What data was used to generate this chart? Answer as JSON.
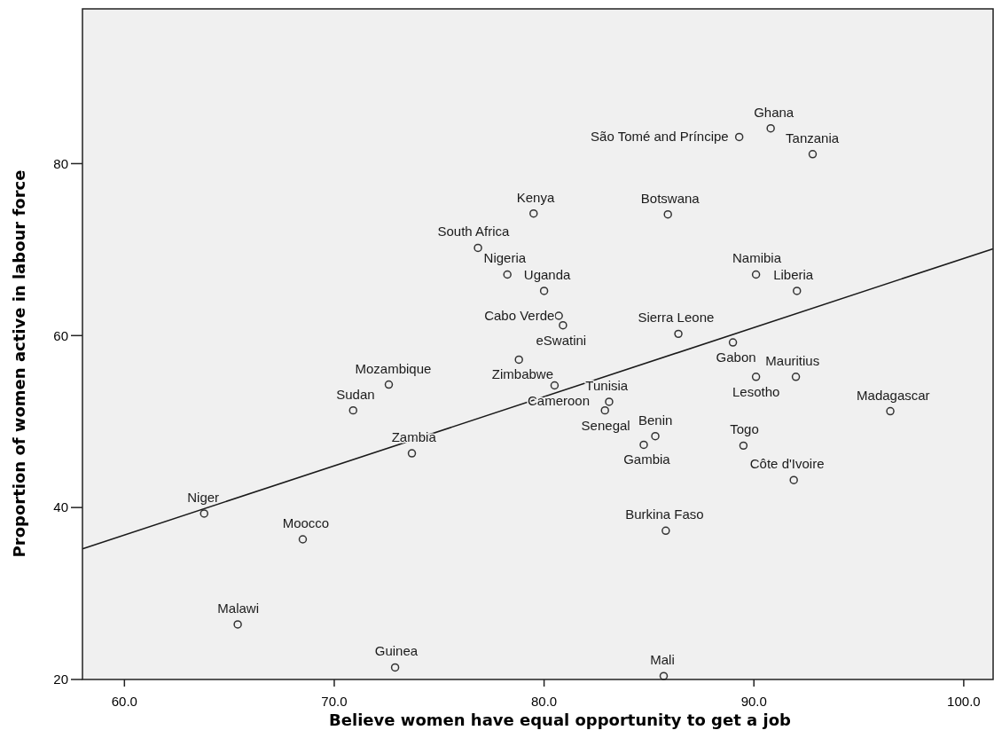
{
  "chart_data": {
    "type": "scatter",
    "xlabel": "Believe women have equal opportunity to get a job",
    "ylabel": "Proportion of women active in labour force",
    "xlim": [
      58,
      101.4
    ],
    "ylim": [
      20,
      98
    ],
    "xticks": [
      {
        "value": 60,
        "label": "60.0"
      },
      {
        "value": 70,
        "label": "70.0"
      },
      {
        "value": 80,
        "label": "80.0"
      },
      {
        "value": 90,
        "label": "90.0"
      },
      {
        "value": 100,
        "label": "100.0"
      }
    ],
    "yticks": [
      20,
      40,
      60,
      80
    ],
    "grid": false,
    "series": [
      {
        "marker": "circle",
        "color": "#333333",
        "x": [
          90.8,
          89.3,
          92.8,
          79.5,
          85.9,
          76.85,
          78.25,
          80.0,
          90.1,
          92.05,
          80.7,
          80.9,
          86.4,
          89.0,
          78.8,
          72.6,
          80.5,
          90.1,
          92.0,
          96.5,
          83.1,
          82.9,
          70.9,
          73.7,
          85.3,
          84.75,
          89.5,
          91.9,
          63.8,
          68.5,
          85.8,
          65.4,
          72.9,
          85.7
        ],
        "values": [
          84.1,
          83.1,
          81.1,
          74.2,
          74.1,
          70.2,
          67.1,
          65.2,
          67.1,
          65.2,
          62.3,
          61.2,
          60.2,
          59.2,
          57.2,
          54.3,
          54.2,
          55.2,
          55.2,
          51.2,
          52.3,
          51.3,
          51.3,
          46.3,
          48.3,
          47.3,
          47.2,
          43.2,
          39.3,
          36.3,
          37.3,
          26.4,
          21.4,
          20.4
        ]
      },
      {
        "type": "line",
        "color": "#1a1a1a",
        "x": [
          58,
          101.4
        ],
        "values": [
          35.2,
          70.1
        ],
        "line_style": "solid"
      }
    ],
    "annotations": [
      {
        "text": "Ghana",
        "x": 90.8,
        "y": 84.1
      },
      {
        "text": "São Tomé and Príncipe",
        "x": 89.3,
        "y": 83.1
      },
      {
        "text": "Tanzania",
        "x": 92.8,
        "y": 81.1
      },
      {
        "text": "Kenya",
        "x": 79.5,
        "y": 74.2
      },
      {
        "text": "Botswana",
        "x": 85.9,
        "y": 74.1
      },
      {
        "text": "South Africa",
        "x": 76.85,
        "y": 70.2
      },
      {
        "text": "Nigeria",
        "x": 78.25,
        "y": 67.1
      },
      {
        "text": "Uganda",
        "x": 80.0,
        "y": 65.2
      },
      {
        "text": "Namibia",
        "x": 90.1,
        "y": 67.1
      },
      {
        "text": "Liberia",
        "x": 92.05,
        "y": 65.2
      },
      {
        "text": "Cabo Verde",
        "x": 80.7,
        "y": 62.3
      },
      {
        "text": "eSwatini",
        "x": 80.9,
        "y": 61.2
      },
      {
        "text": "Sierra Leone",
        "x": 86.4,
        "y": 60.2
      },
      {
        "text": "Gabon",
        "x": 89.0,
        "y": 59.2
      },
      {
        "text": "Zimbabwe",
        "x": 78.8,
        "y": 57.2
      },
      {
        "text": "Mozambique",
        "x": 72.6,
        "y": 54.3
      },
      {
        "text": "Cameroon",
        "x": 80.5,
        "y": 54.2
      },
      {
        "text": "Lesotho",
        "x": 90.1,
        "y": 55.2
      },
      {
        "text": "Mauritius",
        "x": 92.0,
        "y": 55.2
      },
      {
        "text": "Madagascar",
        "x": 96.5,
        "y": 51.2
      },
      {
        "text": "Tunisia",
        "x": 83.1,
        "y": 52.3
      },
      {
        "text": "Senegal",
        "x": 82.9,
        "y": 51.3
      },
      {
        "text": "Sudan",
        "x": 70.9,
        "y": 51.3
      },
      {
        "text": "Zambia",
        "x": 73.7,
        "y": 46.3
      },
      {
        "text": "Benin",
        "x": 85.3,
        "y": 48.3
      },
      {
        "text": "Gambia",
        "x": 84.75,
        "y": 47.3
      },
      {
        "text": "Togo",
        "x": 89.5,
        "y": 47.2
      },
      {
        "text": "Côte d'Ivoire",
        "x": 91.9,
        "y": 43.2
      },
      {
        "text": "Niger",
        "x": 63.8,
        "y": 39.3
      },
      {
        "text": "Moocco",
        "x": 68.5,
        "y": 36.3
      },
      {
        "text": "Burkina Faso",
        "x": 85.8,
        "y": 37.3
      },
      {
        "text": "Malawi",
        "x": 65.4,
        "y": 26.4
      },
      {
        "text": "Guinea",
        "x": 72.9,
        "y": 21.4
      },
      {
        "text": "Mali",
        "x": 85.7,
        "y": 20.4
      }
    ]
  }
}
